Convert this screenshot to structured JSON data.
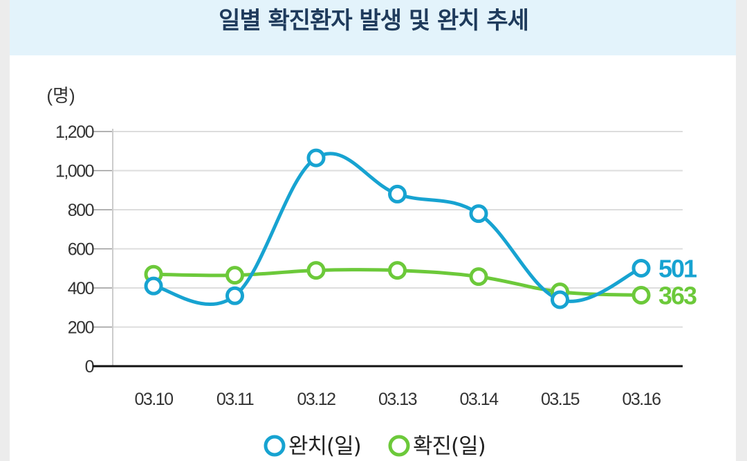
{
  "header": {
    "title": "일별 확진환자 발생 및 완치 추세"
  },
  "chart_data": {
    "type": "line",
    "title": "일별 확진환자 발생 및 완치 추세",
    "ylabel": "(명)",
    "xlabel": "",
    "ylim": [
      0,
      1200
    ],
    "yticks": [
      0,
      200,
      400,
      600,
      800,
      1000,
      1200
    ],
    "ytick_labels": [
      "0",
      "200",
      "400",
      "600",
      "800",
      "1,000",
      "1,200"
    ],
    "categories": [
      "03.10",
      "03.11",
      "03.12",
      "03.13",
      "03.14",
      "03.15",
      "03.16"
    ],
    "grid": true,
    "series": [
      {
        "name": "완치(일)",
        "color": "#17a3d1",
        "values": [
          410,
          360,
          1065,
          880,
          780,
          340,
          501
        ],
        "end_label": "501"
      },
      {
        "name": "확진(일)",
        "color": "#6cc93a",
        "values": [
          470,
          465,
          490,
          490,
          458,
          380,
          363
        ],
        "end_label": "363"
      }
    ],
    "legend_position": "bottom-center"
  }
}
